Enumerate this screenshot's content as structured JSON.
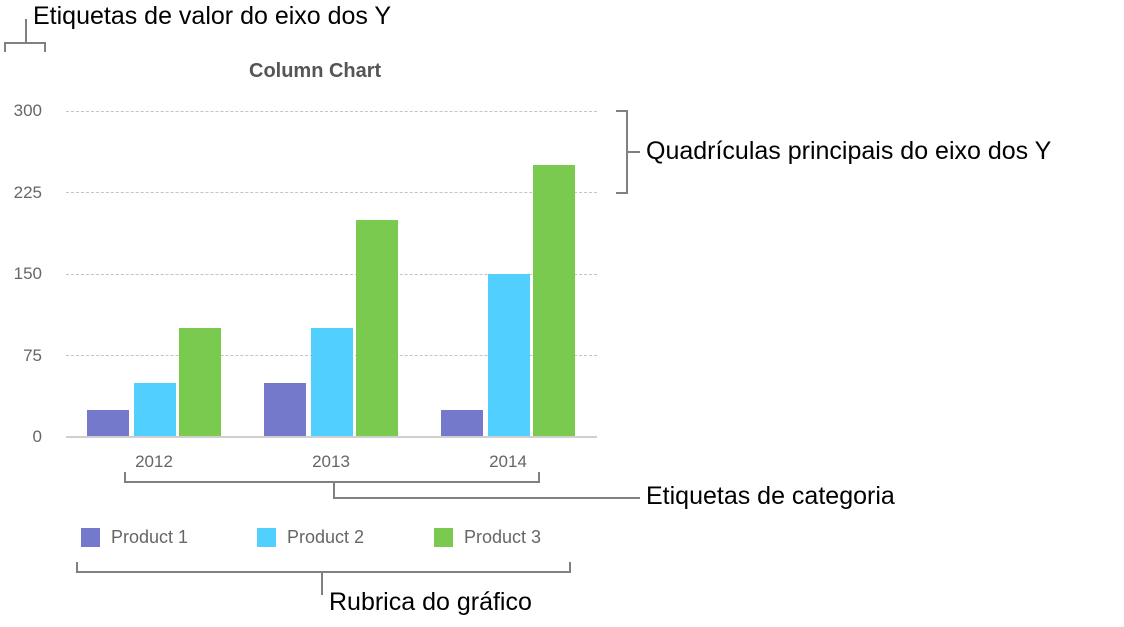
{
  "annotations": {
    "y_value_labels": "Etiquetas de valor do eixo dos Y",
    "y_major_gridlines": "Quadrículas principais do eixo dos Y",
    "category_labels": "Etiquetas de categoria",
    "legend": "Rubrica do gráfico"
  },
  "colors": {
    "product_1": "#7479CC",
    "product_2": "#51CFFF",
    "product_3": "#7BCA50",
    "gridline": "#C4C4C4",
    "callout_line": "#808080"
  },
  "chart_data": {
    "type": "bar",
    "title": "Column Chart",
    "xlabel": "",
    "ylabel": "",
    "categories": [
      "2012",
      "2013",
      "2014"
    ],
    "series": [
      {
        "name": "Product 1",
        "color": "#7479CC",
        "values": [
          25,
          50,
          25
        ]
      },
      {
        "name": "Product 2",
        "color": "#51CFFF",
        "values": [
          50,
          100,
          150
        ]
      },
      {
        "name": "Product 3",
        "color": "#7BCA50",
        "values": [
          100,
          200,
          250
        ]
      }
    ],
    "ylim": [
      0,
      300
    ],
    "yticks": [
      "0",
      "75",
      "150",
      "225",
      "300"
    ],
    "grid": true,
    "legend_position": "bottom"
  }
}
